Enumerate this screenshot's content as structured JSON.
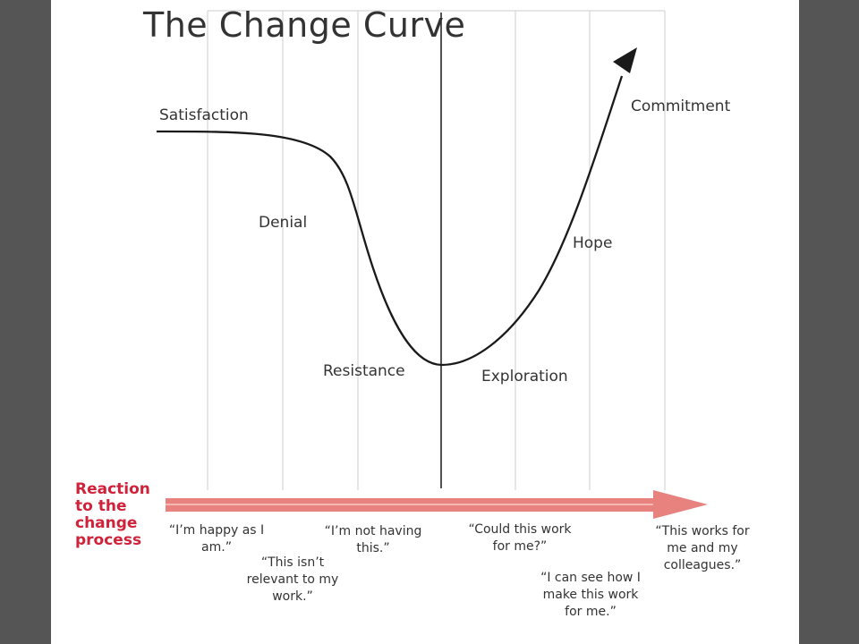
{
  "title": "The Change Curve",
  "stages": {
    "satisfaction": "Satisfaction",
    "denial": "Denial",
    "resistance": "Resistance",
    "exploration": "Exploration",
    "hope": "Hope",
    "commitment": "Commitment"
  },
  "reaction_label": [
    "Reaction",
    "to the",
    "change",
    "process"
  ],
  "quotes": {
    "happy": "“I’m happy as I am.”",
    "not_relevant": "“This isn’t relevant to my work.”",
    "not_having": "“I’m not having this.”",
    "could_work": "“Could this work for me?”",
    "can_see": "“I can see how I make this work for me.”",
    "works_for_me": "“This works for me and my colleagues.”"
  },
  "colors": {
    "background": "#555555",
    "slide": "#ffffff",
    "curve": "#1a1a1a",
    "gridline": "#dddddd",
    "reaction_text": "#d0223a",
    "arrow": "#e8827f"
  }
}
